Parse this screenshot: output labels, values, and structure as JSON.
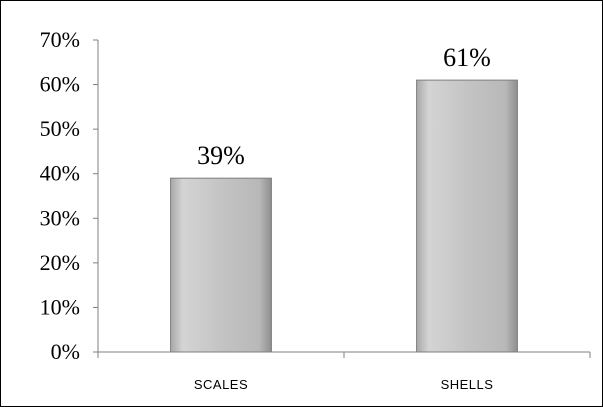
{
  "chart_data": {
    "type": "bar",
    "categories": [
      "SCALES",
      "SHELLS"
    ],
    "values": [
      39,
      61
    ],
    "data_labels": [
      "39%",
      "61%"
    ],
    "title": "",
    "xlabel": "",
    "ylabel": "",
    "ylim": [
      0,
      70
    ],
    "y_ticks": [
      0,
      10,
      20,
      30,
      40,
      50,
      60,
      70
    ],
    "y_tick_labels": [
      "0%",
      "10%",
      "20%",
      "30%",
      "40%",
      "50%",
      "60%",
      "70%"
    ],
    "grid": false,
    "legend": "none",
    "colors": {
      "bar_fill": "#c8c8c8",
      "bar_edge": "#7f7f7f",
      "axis": "#808080",
      "text": "#000000"
    }
  }
}
